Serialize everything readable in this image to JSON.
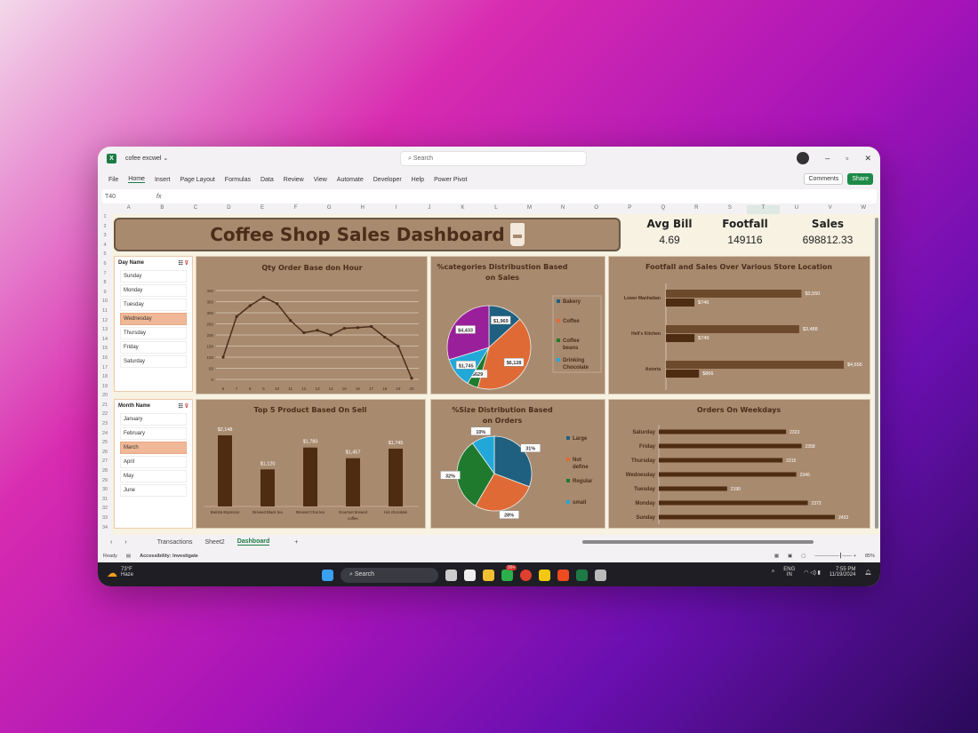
{
  "window": {
    "file_name": "cofee excwel ⌄",
    "search_placeholder": "Search",
    "comments": "Comments",
    "share": "Share"
  },
  "ribbon": [
    "File",
    "Home",
    "Insert",
    "Page Layout",
    "Formulas",
    "Data",
    "Review",
    "View",
    "Automate",
    "Developer",
    "Help",
    "Power Pivot"
  ],
  "formula": {
    "name_box": "T40",
    "fx": "fx"
  },
  "columns": [
    "A",
    "B",
    "C",
    "D",
    "E",
    "F",
    "G",
    "H",
    "I",
    "J",
    "K",
    "L",
    "M",
    "N",
    "O",
    "P",
    "Q",
    "R",
    "S",
    "T",
    "U",
    "V",
    "W"
  ],
  "selected_column": "T",
  "dashboard": {
    "title": "Coffee Shop Sales Dashboard",
    "kpis": [
      {
        "label": "Avg Bill",
        "value": "4.69"
      },
      {
        "label": "Footfall",
        "value": "149116"
      },
      {
        "label": "Sales",
        "value": "698812.33"
      }
    ]
  },
  "day_slicer": {
    "title": "Day Name",
    "items": [
      "Sunday",
      "Monday",
      "Tuesday",
      "Wednesday",
      "Thursday",
      "Friday",
      "Saturday"
    ],
    "selected": "Wednesday"
  },
  "month_slicer": {
    "title": "Month Name",
    "items": [
      "January",
      "February",
      "March",
      "April",
      "May",
      "June"
    ],
    "selected": "March"
  },
  "colors": {
    "chart_bg": "#a88a6e",
    "title": "#4a2e1a",
    "bar_dark": "#4e2c12",
    "bar_light": "#6e4a2c",
    "selection": "#f0b896"
  },
  "chart_data": [
    {
      "type": "line",
      "title": "Qty Order Base don Hour",
      "categories": [
        "6",
        "7",
        "8",
        "9",
        "10",
        "11",
        "12",
        "13",
        "14",
        "15",
        "16",
        "17",
        "18",
        "19",
        "20"
      ],
      "values": [
        100,
        283,
        332,
        370,
        341,
        265,
        210,
        221,
        200,
        230,
        233,
        238,
        190,
        149,
        5
      ],
      "ylim": [
        0,
        400
      ],
      "yticks": [
        0,
        50,
        100,
        150,
        200,
        250,
        300,
        350,
        400
      ],
      "grid": true
    },
    {
      "type": "pie",
      "title": "%categories Distribustion Based on Sales",
      "labels": [
        "Bakery",
        "Coffee",
        "Coffee beans",
        "Drinking Chocolate",
        ""
      ],
      "values": [
        1969,
        6128,
        629,
        1745,
        4433
      ],
      "data_labels": [
        "$1,969",
        "$6,128",
        "$629",
        "$1,745",
        "$4,433"
      ],
      "colors": [
        "#1f6080",
        "#e06a35",
        "#1f7a2e",
        "#22a8d8",
        "#9a1f9a"
      ],
      "legend": "right"
    },
    {
      "type": "bar",
      "orientation": "horizontal",
      "title": "Footfall and Sales Over Various Store Location",
      "categories": [
        "Lower Manhattan",
        "Hell's Kitchen",
        "Astoria"
      ],
      "series": [
        {
          "values": [
            3550,
            3488,
            4656
          ],
          "data_labels": [
            "$3,550",
            "$3,488",
            "$4,656"
          ]
        },
        {
          "values": [
            746,
            749,
            866
          ],
          "data_labels": [
            "$746",
            "$749",
            "$866"
          ]
        }
      ]
    },
    {
      "type": "bar",
      "title": "Top 5 Product  Based On Sell",
      "categories": [
        "Barista Espresso",
        "Brewed Black tea",
        "Brewed Chai tea",
        "Gourmet brewed coffee",
        "Hot chocolate"
      ],
      "values": [
        2148,
        1120,
        1780,
        1457,
        1745
      ],
      "data_labels": [
        "$2,148",
        "$1,120",
        "$1,780",
        "$1,457",
        "$1,745"
      ]
    },
    {
      "type": "pie",
      "title": "%Size Distribution Based on Orders",
      "labels": [
        "Large",
        "Not define",
        "Regular",
        "small"
      ],
      "values": [
        31,
        28,
        32,
        10
      ],
      "data_labels": [
        "31%",
        "28%",
        "32%",
        "10%"
      ],
      "colors": [
        "#1f6080",
        "#e06a35",
        "#1f7a2e",
        "#22a8d8"
      ],
      "legend": "right"
    },
    {
      "type": "bar",
      "orientation": "horizontal",
      "title": "Orders On Weekdays",
      "categories": [
        "Saturday",
        "Friday",
        "Thursday",
        "Wednesday",
        "Tuesday",
        "Monday",
        "Sunday"
      ],
      "values": [
        2323,
        2358,
        2315,
        2346,
        2190,
        2372,
        2433
      ]
    }
  ],
  "sheets": {
    "tabs": [
      "Transactions",
      "Sheet2",
      "Dashboard"
    ],
    "active": "Dashboard",
    "add": "+"
  },
  "status": {
    "ready": "Ready",
    "accessibility": "Accessibility: Investigate",
    "zoom": "85%"
  },
  "taskbar": {
    "temp": "73°F",
    "weather": "Haze",
    "search": "Search",
    "badge": "99+",
    "lang1": "ENG",
    "lang2": "IN",
    "time": "7:55 PM",
    "date": "11/19/2024"
  }
}
